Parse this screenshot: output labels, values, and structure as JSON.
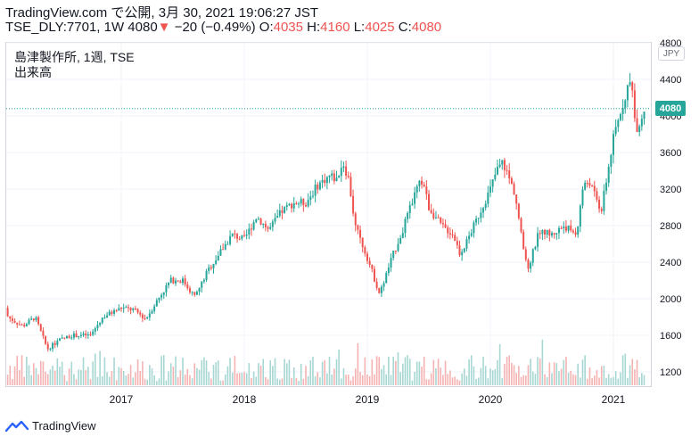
{
  "header": {
    "line1": "TradingView.com で公開, 3月 30, 2021 19:06:27 JST",
    "symbol": "TSE_DLY:7701, 1W",
    "last": "4080",
    "change_arrow": "▼",
    "change": "−20 (−0.49%)",
    "o_label": "O:",
    "o": "4035",
    "h_label": "H:",
    "h": "4160",
    "l_label": "L:",
    "l": "4025",
    "c_label": "C:",
    "c": "4080"
  },
  "legend": {
    "title": "島津製作所, 1週, TSE",
    "volume_label": "出来高"
  },
  "axis": {
    "unit": "JPY",
    "last_price_label": "4080"
  },
  "footer": {
    "brand": "TradingView"
  },
  "colors": {
    "up": "#26a69a",
    "down": "#ef5350",
    "vol_up": "#a7d7d3",
    "vol_down": "#f4b3b2",
    "grid": "#f0f3fa"
  },
  "chart_data": {
    "type": "candlestick",
    "yticks": [
      1200,
      1600,
      2000,
      2400,
      2800,
      3200,
      3600,
      4000,
      4400,
      4800
    ],
    "ylim": [
      1000,
      4800
    ],
    "xticks": [
      "2017",
      "2018",
      "2019",
      "2020",
      "2021"
    ],
    "grid": true,
    "last_price": 4080,
    "price_anchors": [
      [
        2016.0,
        1900
      ],
      [
        2016.1,
        1780
      ],
      [
        2016.2,
        1700
      ],
      [
        2016.3,
        1800
      ],
      [
        2016.4,
        1450
      ],
      [
        2016.5,
        1550
      ],
      [
        2016.6,
        1600
      ],
      [
        2016.75,
        1600
      ],
      [
        2016.85,
        1800
      ],
      [
        2017.0,
        1900
      ],
      [
        2017.1,
        1880
      ],
      [
        2017.2,
        1780
      ],
      [
        2017.3,
        2000
      ],
      [
        2017.4,
        2200
      ],
      [
        2017.5,
        2200
      ],
      [
        2017.6,
        2020
      ],
      [
        2017.7,
        2300
      ],
      [
        2017.8,
        2500
      ],
      [
        2017.9,
        2700
      ],
      [
        2018.0,
        2650
      ],
      [
        2018.1,
        2900
      ],
      [
        2018.2,
        2750
      ],
      [
        2018.3,
        2950
      ],
      [
        2018.4,
        3050
      ],
      [
        2018.5,
        3050
      ],
      [
        2018.6,
        3250
      ],
      [
        2018.7,
        3350
      ],
      [
        2018.75,
        3300
      ],
      [
        2018.8,
        3500
      ],
      [
        2018.85,
        3300
      ],
      [
        2018.9,
        2800
      ],
      [
        2019.0,
        2450
      ],
      [
        2019.05,
        2250
      ],
      [
        2019.1,
        2050
      ],
      [
        2019.2,
        2450
      ],
      [
        2019.3,
        2800
      ],
      [
        2019.4,
        3200
      ],
      [
        2019.45,
        3300
      ],
      [
        2019.5,
        3000
      ],
      [
        2019.6,
        2800
      ],
      [
        2019.7,
        2700
      ],
      [
        2019.75,
        2500
      ],
      [
        2019.8,
        2600
      ],
      [
        2019.9,
        2900
      ],
      [
        2020.0,
        3200
      ],
      [
        2020.05,
        3400
      ],
      [
        2020.1,
        3500
      ],
      [
        2020.2,
        3150
      ],
      [
        2020.25,
        2700
      ],
      [
        2020.3,
        2300
      ],
      [
        2020.4,
        2750
      ],
      [
        2020.5,
        2700
      ],
      [
        2020.6,
        2800
      ],
      [
        2020.7,
        2700
      ],
      [
        2020.75,
        3200
      ],
      [
        2020.8,
        3300
      ],
      [
        2020.9,
        2950
      ],
      [
        2021.0,
        3750
      ],
      [
        2021.05,
        4000
      ],
      [
        2021.1,
        4250
      ],
      [
        2021.15,
        4400
      ],
      [
        2021.18,
        3850
      ],
      [
        2021.22,
        3950
      ],
      [
        2021.25,
        4080
      ]
    ],
    "volume_range": [
      1100,
      1620
    ]
  }
}
